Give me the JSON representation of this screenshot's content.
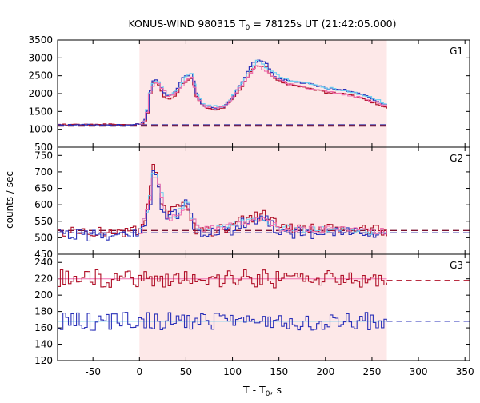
{
  "chart_data": {
    "type": "line",
    "title": "KONUS-WIND 980315 T",
    "title_sub": "0",
    "title_rest": " = 78125s UT (21:42:05.000)",
    "xlabel_main": "T - T",
    "xlabel_sub": "0",
    "xlabel_rest": ", s",
    "ylabel": "counts / sec",
    "xlim": [
      -88,
      355
    ],
    "x_ticks": [
      -50,
      0,
      50,
      100,
      150,
      200,
      250,
      300,
      350
    ],
    "shaded_interval": [
      0,
      266
    ],
    "colors": {
      "shade": "#fde8e8",
      "red_series": "#b01028",
      "blue_series": "#2a30b8",
      "light_blue": "#6ecff0",
      "pink": "#f06fb0",
      "bg_red": "#7a1030",
      "bg_blue": "#4a4ab0"
    },
    "panels": [
      {
        "name": "G1",
        "ylim": [
          500,
          3500
        ],
        "y_ticks": [
          500,
          1000,
          1500,
          2000,
          2500,
          3000,
          3500
        ],
        "background": 1120,
        "red_pts": [
          [
            -88,
            1130
          ],
          [
            -10,
            1130
          ],
          [
            0,
            1150
          ],
          [
            4,
            1200
          ],
          [
            8,
            1500
          ],
          [
            12,
            2250
          ],
          [
            16,
            2320
          ],
          [
            20,
            2250
          ],
          [
            25,
            1900
          ],
          [
            30,
            1850
          ],
          [
            35,
            1900
          ],
          [
            40,
            2050
          ],
          [
            45,
            2300
          ],
          [
            50,
            2350
          ],
          [
            55,
            2450
          ],
          [
            60,
            1900
          ],
          [
            65,
            1700
          ],
          [
            70,
            1620
          ],
          [
            80,
            1560
          ],
          [
            90,
            1620
          ],
          [
            100,
            1900
          ],
          [
            110,
            2250
          ],
          [
            120,
            2700
          ],
          [
            125,
            2780
          ],
          [
            135,
            2750
          ],
          [
            140,
            2500
          ],
          [
            145,
            2380
          ],
          [
            160,
            2250
          ],
          [
            180,
            2150
          ],
          [
            200,
            2030
          ],
          [
            220,
            2000
          ],
          [
            240,
            1850
          ],
          [
            255,
            1700
          ],
          [
            266,
            1600
          ]
        ],
        "blue_pts": [
          [
            -88,
            1120
          ],
          [
            -10,
            1110
          ],
          [
            0,
            1140
          ],
          [
            4,
            1210
          ],
          [
            8,
            1550
          ],
          [
            12,
            2330
          ],
          [
            16,
            2380
          ],
          [
            20,
            2300
          ],
          [
            25,
            2000
          ],
          [
            30,
            1950
          ],
          [
            35,
            2000
          ],
          [
            40,
            2150
          ],
          [
            45,
            2450
          ],
          [
            50,
            2500
          ],
          [
            55,
            2580
          ],
          [
            60,
            2000
          ],
          [
            65,
            1750
          ],
          [
            70,
            1650
          ],
          [
            80,
            1600
          ],
          [
            90,
            1650
          ],
          [
            100,
            1950
          ],
          [
            110,
            2350
          ],
          [
            120,
            2850
          ],
          [
            125,
            2920
          ],
          [
            135,
            2880
          ],
          [
            140,
            2600
          ],
          [
            145,
            2450
          ],
          [
            160,
            2350
          ],
          [
            180,
            2280
          ],
          [
            200,
            2150
          ],
          [
            220,
            2100
          ],
          [
            240,
            1950
          ],
          [
            255,
            1780
          ],
          [
            266,
            1680
          ]
        ],
        "light_pts": [
          [
            0,
            1150
          ],
          [
            5,
            1300
          ],
          [
            10,
            2100
          ],
          [
            15,
            2380
          ],
          [
            20,
            2300
          ],
          [
            30,
            1950
          ],
          [
            40,
            2100
          ],
          [
            50,
            2550
          ],
          [
            55,
            2600
          ],
          [
            60,
            2000
          ],
          [
            70,
            1650
          ],
          [
            90,
            1640
          ],
          [
            110,
            2330
          ],
          [
            125,
            2930
          ],
          [
            140,
            2620
          ],
          [
            160,
            2370
          ],
          [
            200,
            2170
          ],
          [
            240,
            1960
          ],
          [
            266,
            1700
          ]
        ],
        "pink_pts": [
          [
            0,
            1145
          ],
          [
            5,
            1280
          ],
          [
            10,
            2050
          ],
          [
            15,
            2330
          ],
          [
            20,
            2260
          ],
          [
            30,
            1900
          ],
          [
            40,
            2080
          ],
          [
            50,
            2400
          ],
          [
            55,
            2450
          ],
          [
            60,
            1920
          ],
          [
            70,
            1630
          ],
          [
            90,
            1620
          ],
          [
            110,
            2280
          ],
          [
            125,
            2790
          ],
          [
            140,
            2520
          ],
          [
            160,
            2260
          ],
          [
            200,
            2050
          ],
          [
            240,
            1870
          ],
          [
            266,
            1620
          ]
        ]
      },
      {
        "name": "G2",
        "ylim": [
          450,
          775
        ],
        "y_ticks": [
          450,
          500,
          550,
          600,
          650,
          700,
          750
        ],
        "background_red": 522,
        "background_blue": 515,
        "red_pts": [
          [
            -88,
            515
          ],
          [
            -60,
            520
          ],
          [
            -30,
            515
          ],
          [
            0,
            520
          ],
          [
            5,
            550
          ],
          [
            10,
            640
          ],
          [
            14,
            720
          ],
          [
            18,
            690
          ],
          [
            22,
            600
          ],
          [
            28,
            570
          ],
          [
            35,
            580
          ],
          [
            42,
            590
          ],
          [
            48,
            610
          ],
          [
            52,
            560
          ],
          [
            56,
            540
          ],
          [
            60,
            525
          ],
          [
            80,
            520
          ],
          [
            100,
            540
          ],
          [
            110,
            560
          ],
          [
            125,
            565
          ],
          [
            135,
            570
          ],
          [
            145,
            545
          ],
          [
            160,
            530
          ],
          [
            200,
            525
          ],
          [
            240,
            525
          ],
          [
            266,
            520
          ]
        ],
        "blue_pts": [
          [
            -88,
            512
          ],
          [
            -60,
            508
          ],
          [
            -30,
            510
          ],
          [
            0,
            515
          ],
          [
            5,
            540
          ],
          [
            10,
            600
          ],
          [
            14,
            700
          ],
          [
            18,
            680
          ],
          [
            22,
            580
          ],
          [
            28,
            560
          ],
          [
            35,
            575
          ],
          [
            42,
            570
          ],
          [
            48,
            620
          ],
          [
            52,
            580
          ],
          [
            56,
            545
          ],
          [
            60,
            520
          ],
          [
            80,
            510
          ],
          [
            100,
            525
          ],
          [
            110,
            545
          ],
          [
            125,
            555
          ],
          [
            135,
            560
          ],
          [
            145,
            530
          ],
          [
            160,
            515
          ],
          [
            200,
            512
          ],
          [
            240,
            515
          ],
          [
            266,
            510
          ]
        ],
        "light_pts": [
          [
            0,
            520
          ],
          [
            8,
            600
          ],
          [
            14,
            710
          ],
          [
            20,
            660
          ],
          [
            28,
            560
          ],
          [
            40,
            570
          ],
          [
            50,
            630
          ],
          [
            55,
            560
          ],
          [
            65,
            525
          ],
          [
            110,
            550
          ],
          [
            130,
            560
          ],
          [
            150,
            530
          ],
          [
            266,
            515
          ]
        ],
        "pink_pts": [
          [
            0,
            522
          ],
          [
            8,
            590
          ],
          [
            14,
            700
          ],
          [
            20,
            650
          ],
          [
            28,
            560
          ],
          [
            40,
            565
          ],
          [
            50,
            600
          ],
          [
            55,
            555
          ],
          [
            65,
            525
          ],
          [
            110,
            545
          ],
          [
            130,
            555
          ],
          [
            150,
            530
          ],
          [
            266,
            520
          ]
        ]
      },
      {
        "name": "G3",
        "ylim": [
          120,
          250
        ],
        "y_ticks": [
          120,
          140,
          160,
          180,
          200,
          220,
          240
        ],
        "background_red": 218,
        "background_blue": 168,
        "red_mean": 220,
        "blue_mean": 168
      }
    ]
  }
}
